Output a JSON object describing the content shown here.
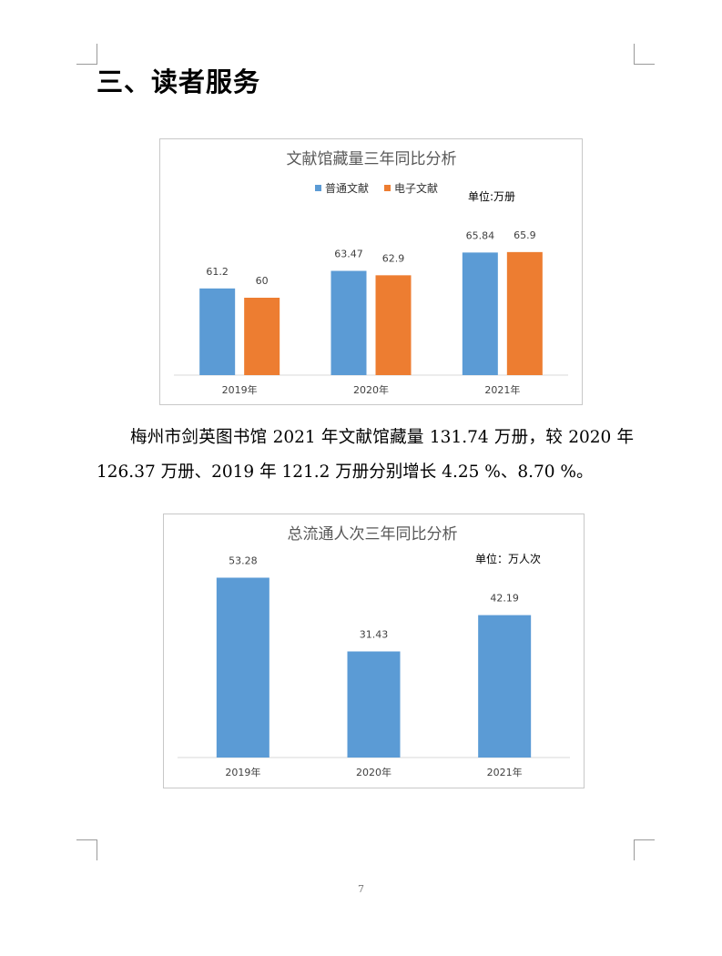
{
  "section": {
    "heading": "三、读者服务"
  },
  "chart_data": [
    {
      "type": "bar",
      "title": "文献馆藏量三年同比分析",
      "unit_label": "单位:万册",
      "categories": [
        "2019年",
        "2020年",
        "2021年"
      ],
      "series": [
        {
          "name": "普通文献",
          "color": "#5b9bd5",
          "values": [
            61.2,
            63.47,
            65.84
          ]
        },
        {
          "name": "电子文献",
          "color": "#ed7d31",
          "values": [
            60,
            62.9,
            65.9
          ]
        }
      ],
      "ylim": [
        50,
        68
      ],
      "legend": "top",
      "grid": false
    },
    {
      "type": "bar",
      "title": "总流通人次三年同比分析",
      "unit_label": "单位：万人次",
      "categories": [
        "2019年",
        "2020年",
        "2021年"
      ],
      "series": [
        {
          "color": "#5b9bd5",
          "values": [
            53.28,
            31.43,
            42.19
          ]
        }
      ],
      "ylim": [
        0,
        58
      ],
      "grid": false
    }
  ],
  "paragraph": "梅州市剑英图书馆 2021 年文献馆藏量 131.74 万册，较 2020 年 126.37 万册、2019 年 121.2 万册分别增长 4.25 %、8.70 %。",
  "page_number": "7"
}
